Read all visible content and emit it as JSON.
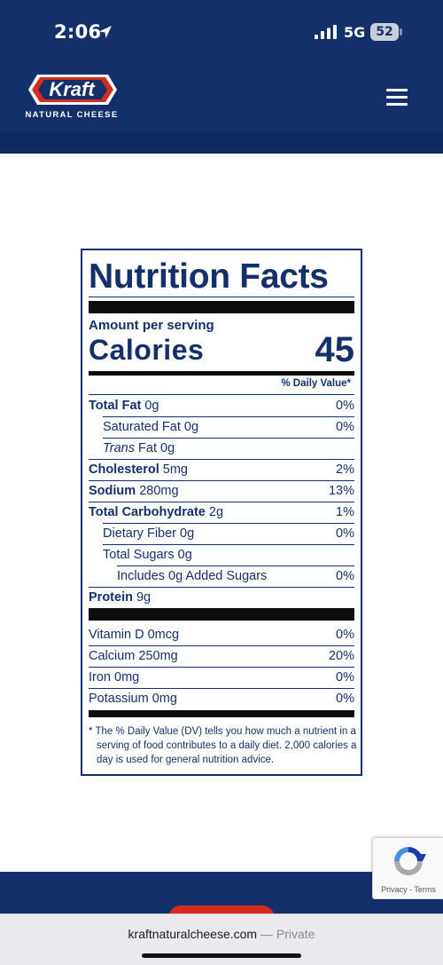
{
  "status_bar": {
    "time": "2:06",
    "network": "5G",
    "battery": "52",
    "icons": [
      "location-arrow-icon",
      "signal-bars-icon",
      "battery-icon"
    ]
  },
  "header": {
    "logo_text": "Kraft",
    "logo_subtitle": "NATURAL CHEESE",
    "menu_icon": "hamburger-menu-icon",
    "colors": {
      "navy": "#13306b",
      "red": "#d62b1f"
    }
  },
  "nutrition": {
    "title": "Nutrition Facts",
    "amount_per_serving": "Amount per serving",
    "calories_label": "Calories",
    "calories_value": "45",
    "dv_header": "% Daily Value*",
    "rows": [
      {
        "bold": "Total Fat",
        "rest": " 0g",
        "pct": "0%"
      },
      {
        "plain": "Saturated Fat 0g",
        "pct": "0%"
      },
      {
        "italic": "Trans",
        "rest": " Fat 0g",
        "pct": ""
      },
      {
        "bold": "Cholesterol",
        "rest": " 5mg",
        "pct": "2%"
      },
      {
        "bold": "Sodium",
        "rest": " 280mg",
        "pct": "13%"
      },
      {
        "bold": "Total Carbohydrate",
        "rest": " 2g",
        "pct": "1%"
      },
      {
        "plain": "Dietary Fiber 0g",
        "pct": "0%"
      },
      {
        "plain": "Total Sugars 0g",
        "pct": ""
      },
      {
        "plain": "Includes 0g Added Sugars",
        "pct": "0%"
      },
      {
        "bold": "Protein",
        "rest": " 9g",
        "pct": ""
      }
    ],
    "micros": [
      {
        "plain": "Vitamin D 0mcg",
        "pct": "0%"
      },
      {
        "plain": "Calcium 250mg",
        "pct": "20%"
      },
      {
        "plain": "Iron 0mg",
        "pct": "0%"
      },
      {
        "plain": "Potassium 0mg",
        "pct": "0%"
      }
    ],
    "footnote": "* The % Daily Value (DV) tells you how much a nutrient in a serving of food contributes to a daily diet. 2,000 calories a day is used for general nutrition advice."
  },
  "recaptcha": {
    "text": "Privacy - Terms",
    "icon": "recaptcha-icon"
  },
  "browser": {
    "domain": "kraftnaturalcheese.com",
    "suffix": " — Private"
  }
}
